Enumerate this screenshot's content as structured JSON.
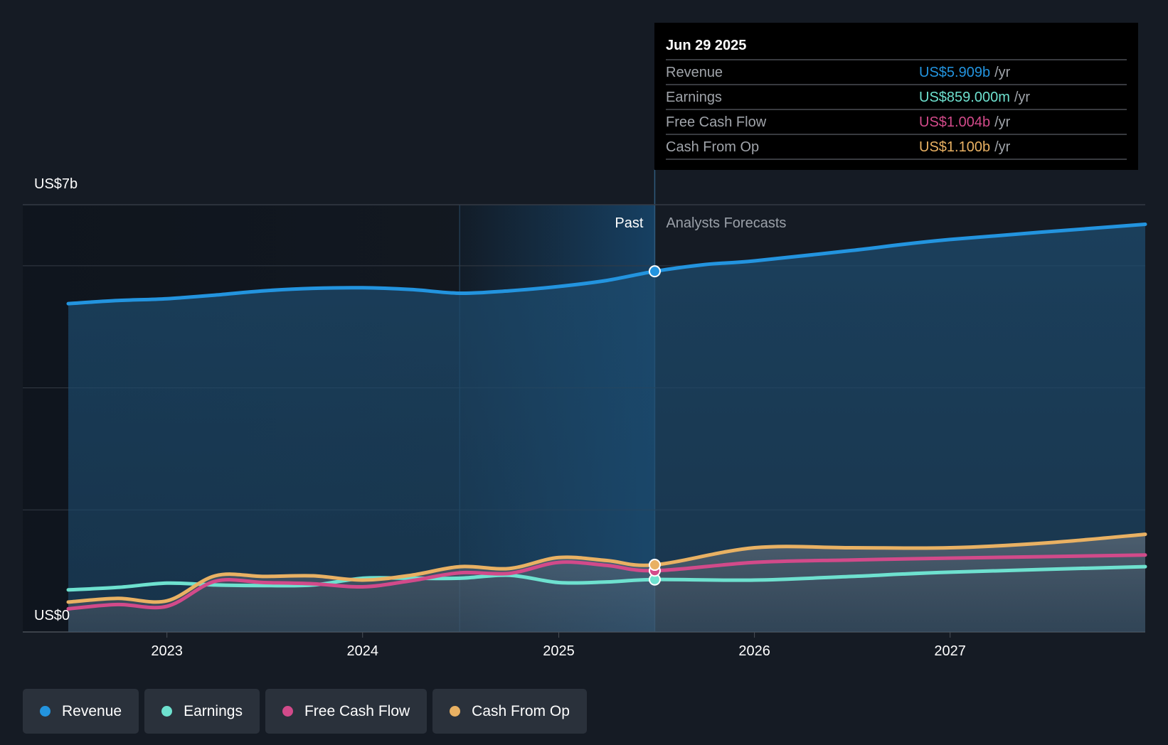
{
  "chart_data": {
    "type": "line",
    "y_top_label": "US$7b",
    "y_bottom_label": "US$0",
    "ylim": [
      0,
      7
    ],
    "y_grid": [
      0,
      2,
      4,
      6,
      7
    ],
    "xlim": [
      "2022-07-01",
      "2027-12-31"
    ],
    "x_ticks": [
      {
        "label": "2023",
        "date": "2023-01-01"
      },
      {
        "label": "2024",
        "date": "2024-01-01"
      },
      {
        "label": "2025",
        "date": "2025-01-01"
      },
      {
        "label": "2026",
        "date": "2026-01-01"
      },
      {
        "label": "2027",
        "date": "2027-01-01"
      }
    ],
    "past_label": "Past",
    "forecast_label": "Analysts Forecasts",
    "divider_date": "2025-06-29",
    "highlight_start_date": "2024-06-30",
    "series": [
      {
        "name": "Revenue",
        "color": "#2394df",
        "fill": true,
        "points": [
          [
            "2022-07-01",
            5.38
          ],
          [
            "2022-10-01",
            5.43
          ],
          [
            "2023-01-01",
            5.46
          ],
          [
            "2023-04-01",
            5.52
          ],
          [
            "2023-07-01",
            5.59
          ],
          [
            "2023-10-01",
            5.63
          ],
          [
            "2024-01-01",
            5.64
          ],
          [
            "2024-04-01",
            5.61
          ],
          [
            "2024-07-01",
            5.55
          ],
          [
            "2024-10-01",
            5.59
          ],
          [
            "2025-01-01",
            5.66
          ],
          [
            "2025-04-01",
            5.76
          ],
          [
            "2025-06-29",
            5.909
          ],
          [
            "2025-10-01",
            6.02
          ],
          [
            "2026-01-01",
            6.08
          ],
          [
            "2026-07-01",
            6.25
          ],
          [
            "2027-01-01",
            6.43
          ],
          [
            "2027-12-31",
            6.68
          ]
        ]
      },
      {
        "name": "Earnings",
        "color": "#6ee1cf",
        "fill": false,
        "points": [
          [
            "2022-07-01",
            0.69
          ],
          [
            "2022-10-01",
            0.73
          ],
          [
            "2023-01-01",
            0.8
          ],
          [
            "2023-04-01",
            0.77
          ],
          [
            "2023-07-01",
            0.76
          ],
          [
            "2023-10-01",
            0.77
          ],
          [
            "2024-01-01",
            0.88
          ],
          [
            "2024-04-01",
            0.88
          ],
          [
            "2024-07-01",
            0.88
          ],
          [
            "2024-10-01",
            0.93
          ],
          [
            "2025-01-01",
            0.81
          ],
          [
            "2025-04-01",
            0.82
          ],
          [
            "2025-06-29",
            0.859
          ],
          [
            "2026-01-01",
            0.85
          ],
          [
            "2026-07-01",
            0.91
          ],
          [
            "2027-01-01",
            0.98
          ],
          [
            "2027-12-31",
            1.07
          ]
        ]
      },
      {
        "name": "Free Cash Flow",
        "color": "#d24a8a",
        "fill": false,
        "points": [
          [
            "2022-07-01",
            0.38
          ],
          [
            "2022-10-01",
            0.45
          ],
          [
            "2023-01-01",
            0.42
          ],
          [
            "2023-04-01",
            0.83
          ],
          [
            "2023-07-01",
            0.81
          ],
          [
            "2023-10-01",
            0.79
          ],
          [
            "2024-01-01",
            0.74
          ],
          [
            "2024-04-01",
            0.84
          ],
          [
            "2024-07-01",
            0.97
          ],
          [
            "2024-10-01",
            0.96
          ],
          [
            "2025-01-01",
            1.14
          ],
          [
            "2025-04-01",
            1.09
          ],
          [
            "2025-06-29",
            1.004
          ],
          [
            "2026-01-01",
            1.14
          ],
          [
            "2026-07-01",
            1.18
          ],
          [
            "2027-01-01",
            1.21
          ],
          [
            "2027-12-31",
            1.26
          ]
        ]
      },
      {
        "name": "Cash From Op",
        "color": "#e9b163",
        "fill": false,
        "points": [
          [
            "2022-07-01",
            0.49
          ],
          [
            "2022-10-01",
            0.55
          ],
          [
            "2023-01-01",
            0.51
          ],
          [
            "2023-04-01",
            0.92
          ],
          [
            "2023-07-01",
            0.91
          ],
          [
            "2023-10-01",
            0.92
          ],
          [
            "2024-01-01",
            0.85
          ],
          [
            "2024-04-01",
            0.93
          ],
          [
            "2024-07-01",
            1.07
          ],
          [
            "2024-10-01",
            1.04
          ],
          [
            "2025-01-01",
            1.22
          ],
          [
            "2025-04-01",
            1.17
          ],
          [
            "2025-06-29",
            1.1
          ],
          [
            "2026-01-01",
            1.38
          ],
          [
            "2026-07-01",
            1.38
          ],
          [
            "2027-01-01",
            1.38
          ],
          [
            "2027-07-01",
            1.46
          ],
          [
            "2027-12-31",
            1.6
          ]
        ]
      }
    ]
  },
  "tooltip": {
    "date": "Jun 29 2025",
    "unit": "/yr",
    "rows": [
      {
        "label": "Revenue",
        "value": "US$5.909b",
        "color": "#2394df"
      },
      {
        "label": "Earnings",
        "value": "US$859.000m",
        "color": "#6ee1cf"
      },
      {
        "label": "Free Cash Flow",
        "value": "US$1.004b",
        "color": "#d24a8a"
      },
      {
        "label": "Cash From Op",
        "value": "US$1.100b",
        "color": "#e9b163"
      }
    ]
  },
  "legend": [
    {
      "label": "Revenue",
      "color": "#2394df"
    },
    {
      "label": "Earnings",
      "color": "#6ee1cf"
    },
    {
      "label": "Free Cash Flow",
      "color": "#d24a8a"
    },
    {
      "label": "Cash From Op",
      "color": "#e9b163"
    }
  ]
}
